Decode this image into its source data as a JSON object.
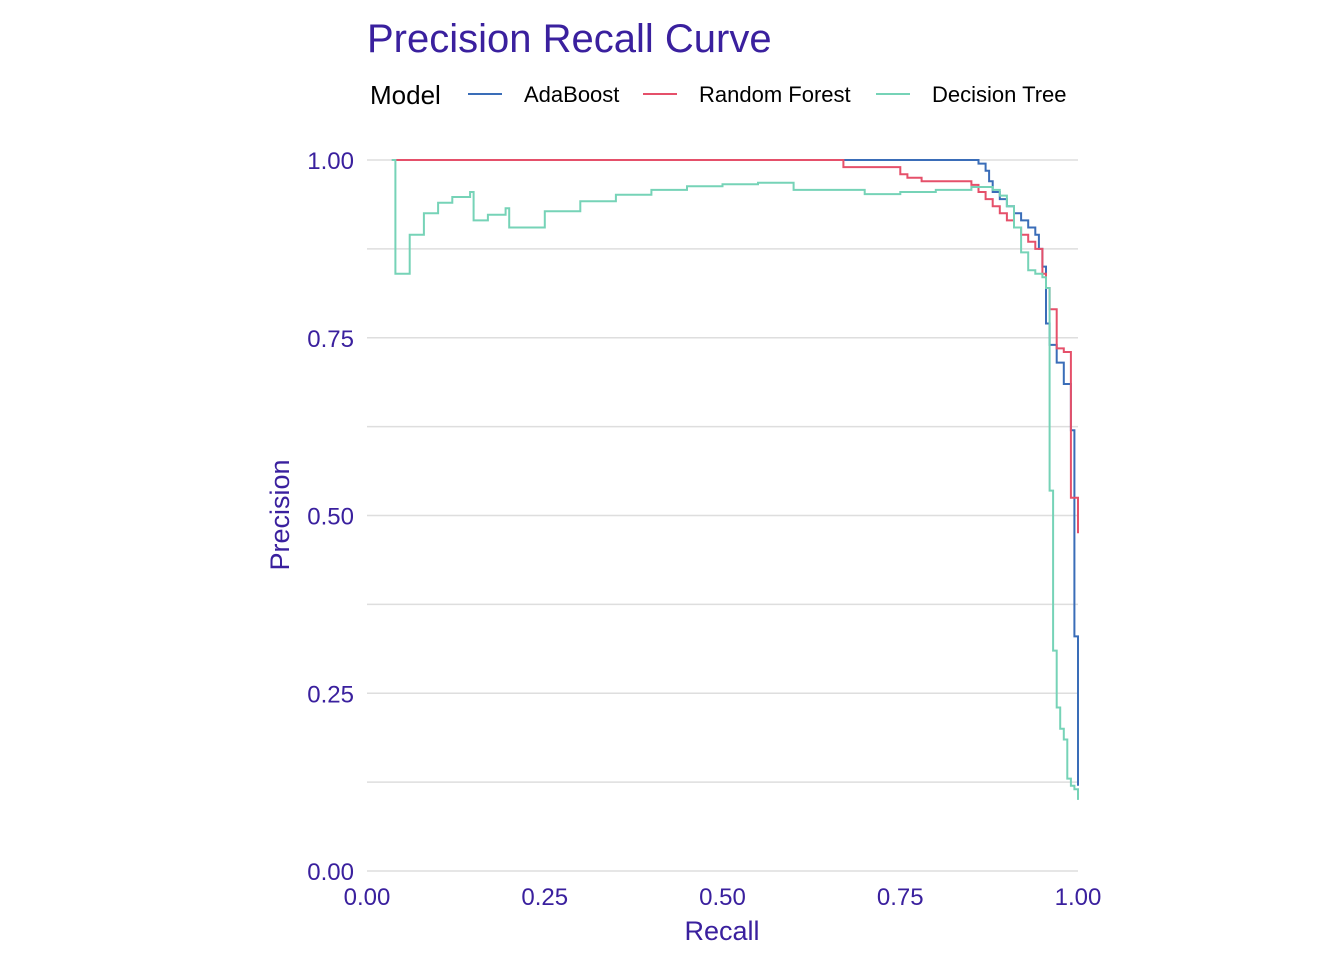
{
  "chart_data": {
    "type": "line",
    "title": "Precision Recall Curve",
    "xlabel": "Recall",
    "ylabel": "Precision",
    "xlim": [
      0,
      1
    ],
    "ylim": [
      0,
      1
    ],
    "x_ticks": [
      "0.00",
      "0.25",
      "0.50",
      "0.75",
      "1.00"
    ],
    "y_ticks": [
      "0.00",
      "0.25",
      "0.50",
      "0.75",
      "1.00"
    ],
    "x_tick_values": [
      0,
      0.25,
      0.5,
      0.75,
      1.0
    ],
    "y_tick_values": [
      0,
      0.25,
      0.5,
      0.75,
      1.0
    ],
    "grid": true,
    "legend": {
      "title": "Model",
      "position": "top"
    },
    "colors": {
      "text": "#3A209E",
      "grid": "#DEDEDE",
      "legend_text": "#000000"
    },
    "series": [
      {
        "name": "AdaBoost",
        "color": "#3A6DB8",
        "step": true,
        "x": [
          0.035,
          0.84,
          0.86,
          0.87,
          0.875,
          0.88,
          0.89,
          0.9,
          0.91,
          0.92,
          0.93,
          0.94,
          0.945,
          0.95,
          0.955,
          0.96,
          0.97,
          0.98,
          0.99,
          0.995,
          1.0
        ],
        "y": [
          1.0,
          1.0,
          0.995,
          0.985,
          0.97,
          0.955,
          0.945,
          0.935,
          0.925,
          0.915,
          0.905,
          0.895,
          0.875,
          0.85,
          0.77,
          0.74,
          0.715,
          0.685,
          0.62,
          0.33,
          0.12
        ]
      },
      {
        "name": "Random Forest",
        "color": "#E5506A",
        "step": true,
        "x": [
          0.035,
          0.67,
          0.75,
          0.76,
          0.78,
          0.85,
          0.86,
          0.87,
          0.88,
          0.89,
          0.9,
          0.91,
          0.92,
          0.93,
          0.94,
          0.95,
          0.955,
          0.96,
          0.97,
          0.98,
          0.99,
          1.0
        ],
        "y": [
          1.0,
          0.99,
          0.98,
          0.975,
          0.97,
          0.965,
          0.955,
          0.945,
          0.935,
          0.925,
          0.915,
          0.905,
          0.895,
          0.885,
          0.875,
          0.84,
          0.82,
          0.79,
          0.735,
          0.73,
          0.525,
          0.475
        ]
      },
      {
        "name": "Decision Tree",
        "color": "#76D3B7",
        "step": true,
        "x": [
          0.035,
          0.04,
          0.06,
          0.08,
          0.1,
          0.12,
          0.145,
          0.15,
          0.17,
          0.195,
          0.2,
          0.25,
          0.3,
          0.35,
          0.4,
          0.45,
          0.5,
          0.55,
          0.6,
          0.65,
          0.7,
          0.75,
          0.8,
          0.85,
          0.88,
          0.89,
          0.9,
          0.91,
          0.92,
          0.93,
          0.94,
          0.95,
          0.955,
          0.96,
          0.965,
          0.97,
          0.975,
          0.98,
          0.985,
          0.99,
          0.995,
          1.0
        ],
        "y": [
          1.0,
          0.84,
          0.895,
          0.925,
          0.94,
          0.948,
          0.955,
          0.915,
          0.923,
          0.932,
          0.905,
          0.928,
          0.942,
          0.951,
          0.958,
          0.963,
          0.966,
          0.968,
          0.958,
          0.958,
          0.952,
          0.955,
          0.958,
          0.962,
          0.958,
          0.95,
          0.935,
          0.905,
          0.87,
          0.845,
          0.84,
          0.835,
          0.82,
          0.535,
          0.31,
          0.23,
          0.2,
          0.185,
          0.13,
          0.12,
          0.115,
          0.1
        ]
      }
    ]
  }
}
